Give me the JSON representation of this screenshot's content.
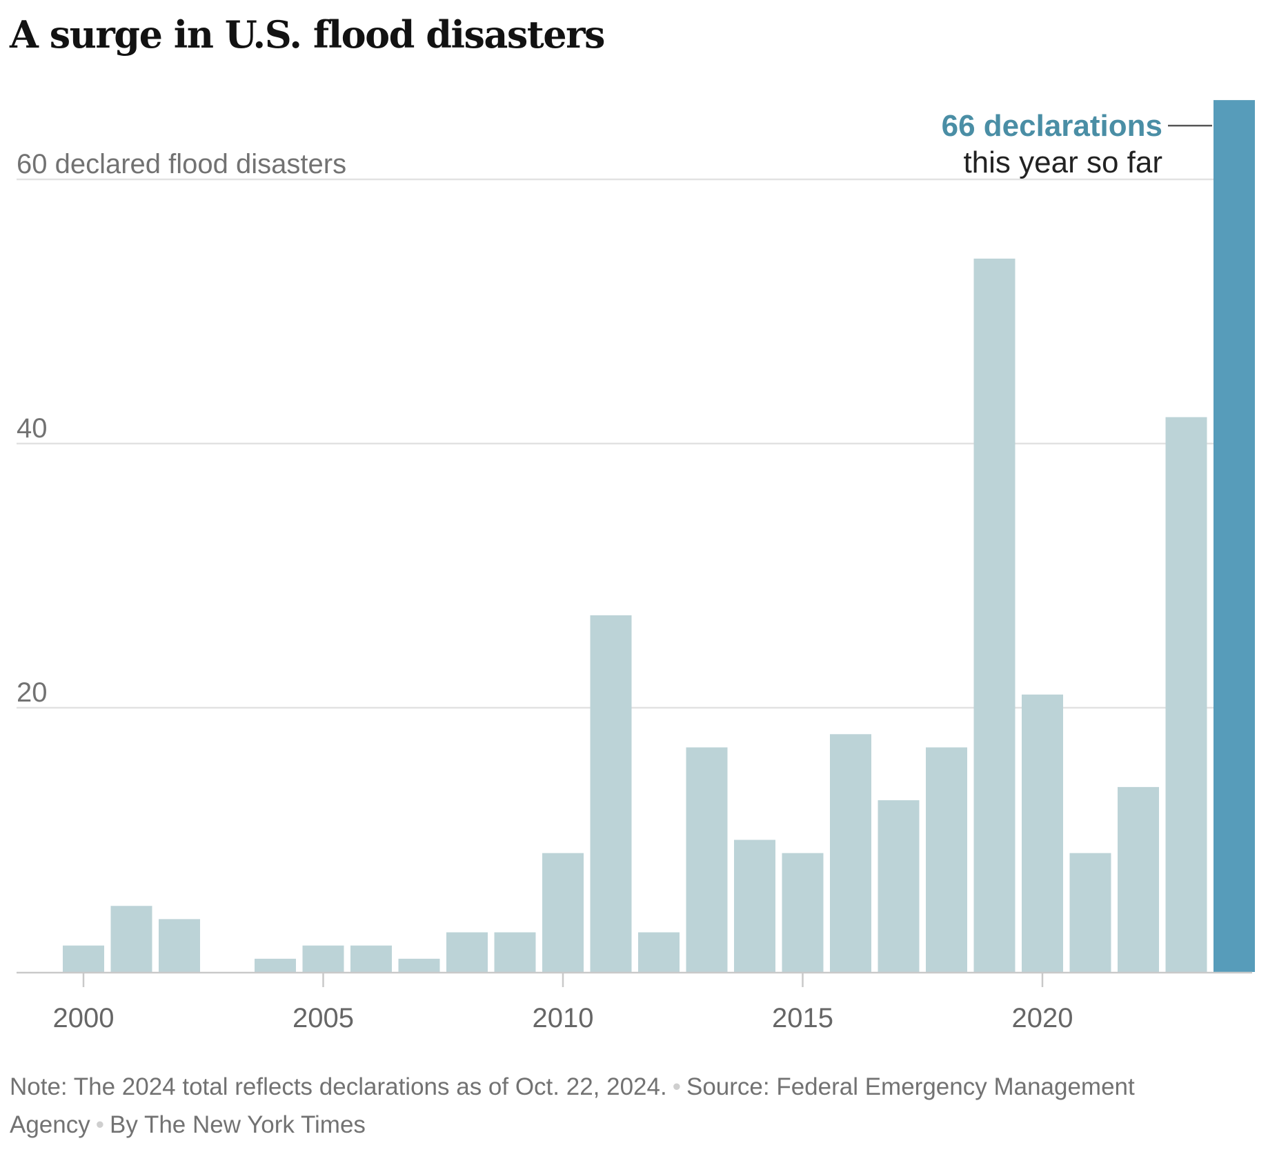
{
  "header": {
    "title": "A surge in U.S. flood disasters"
  },
  "chart_data": {
    "type": "bar",
    "title": "A surge in U.S. flood disasters",
    "ylabel": "declared flood disasters",
    "ylim": [
      0,
      66
    ],
    "y_ticks": [
      {
        "value": 20,
        "label": "20"
      },
      {
        "value": 40,
        "label": "40"
      },
      {
        "value": 60,
        "label": "60 declared flood disasters"
      }
    ],
    "x_ticks": [
      2000,
      2005,
      2010,
      2015,
      2020
    ],
    "x_tick_labels": [
      "2000",
      "2005",
      "2010",
      "2015",
      "2020"
    ],
    "grid": true,
    "years": [
      2000,
      2001,
      2002,
      2003,
      2004,
      2005,
      2006,
      2007,
      2008,
      2009,
      2010,
      2011,
      2012,
      2013,
      2014,
      2015,
      2016,
      2017,
      2018,
      2019,
      2020,
      2021,
      2022,
      2023,
      2024
    ],
    "values": [
      2,
      5,
      4,
      0,
      1,
      2,
      2,
      1,
      3,
      3,
      9,
      27,
      3,
      17,
      10,
      9,
      18,
      13,
      17,
      54,
      21,
      9,
      14,
      42,
      66
    ],
    "highlight_year": 2024,
    "colors": {
      "bar": "#bcd3d7",
      "highlight": "#579cba",
      "grid": "#e2e2e2",
      "axis": "#c9c9c9",
      "annotation": "#4a8ea5"
    },
    "annotation": {
      "line1": "66 declarations",
      "line2": "this year so far"
    }
  },
  "footer": {
    "note": "Note: The 2024 total reflects declarations as of Oct. 22, 2024.",
    "source": "Source: Federal Emergency Management Agency",
    "credit": "By The New York Times"
  }
}
